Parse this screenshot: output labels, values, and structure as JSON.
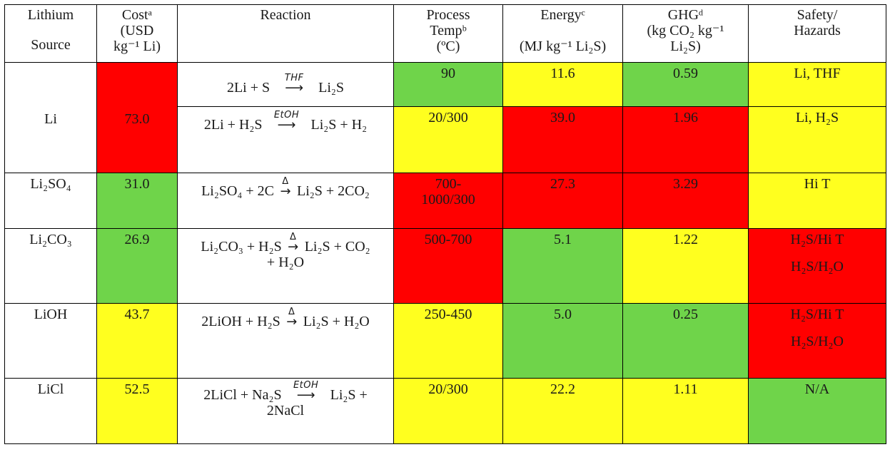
{
  "headers": {
    "source": [
      "Lithium",
      "Source"
    ],
    "cost": [
      "Costᵃ",
      "(USD",
      "kg⁻¹ Li)"
    ],
    "reaction": "Reaction",
    "temp": [
      "Process",
      "Tempᵇ",
      "(ºC)"
    ],
    "energy": [
      "Energyᶜ",
      "",
      "(MJ kg⁻¹ Li₂S)"
    ],
    "ghg": [
      "GHGᵈ",
      "(kg CO₂ kg⁻¹",
      "Li₂S)"
    ],
    "safety": [
      "Safety/",
      "Hazards"
    ]
  },
  "rows": {
    "li": {
      "source": "Li",
      "cost": "73.0",
      "rxn1": {
        "left": "2Li + S",
        "label": "THF",
        "right": "Li₂S"
      },
      "temp1": "90",
      "energy1": "11.6",
      "ghg1": "0.59",
      "safety1": "Li, THF",
      "rxn2": {
        "left": "2Li + H₂S",
        "label": "EtOH",
        "right": "Li₂S + H₂"
      },
      "temp2": "20/300",
      "energy2": "39.0",
      "ghg2": "1.96",
      "safety2": "Li, H₂S"
    },
    "li2so4": {
      "source": "Li₂SO₄",
      "cost": "31.0",
      "rxn": {
        "left": "Li₂SO₄ + 2C",
        "label": "Δ",
        "right": "Li₂S + 2CO₂"
      },
      "temp": [
        "700-",
        "1000/300"
      ],
      "energy": "27.3",
      "ghg": "3.29",
      "safety": "Hi T"
    },
    "li2co3": {
      "source": "Li₂CO₃",
      "cost": "26.9",
      "rxn": {
        "left": "Li₂CO₃ + H₂S",
        "label": "Δ",
        "right": "Li₂S + CO₂",
        "cont": "+ H₂O"
      },
      "temp": "500-700",
      "energy": "5.1",
      "ghg": "1.22",
      "safety": [
        "H₂S/Hi T",
        "H₂S/H₂O"
      ]
    },
    "lioh": {
      "source": "LiOH",
      "cost": "43.7",
      "rxn": {
        "left": "2LiOH + H₂S",
        "label": "Δ",
        "right": "Li₂S + H₂O"
      },
      "temp": "250-450",
      "energy": "5.0",
      "ghg": "0.25",
      "safety": [
        "H₂S/Hi T",
        "H₂S/H₂O"
      ]
    },
    "licl": {
      "source": "LiCl",
      "cost": "52.5",
      "rxn": {
        "left": "2LiCl + Na₂S",
        "label": "EtOH",
        "right": "Li₂S +",
        "cont": "2NaCl"
      },
      "temp": "20/300",
      "energy": "22.2",
      "ghg": "1.11",
      "safety": "N/A"
    }
  },
  "colors": {
    "red": "#ff0000",
    "green": "#6fd44a",
    "yellow": "#ffff1f",
    "white": "#ffffff"
  }
}
